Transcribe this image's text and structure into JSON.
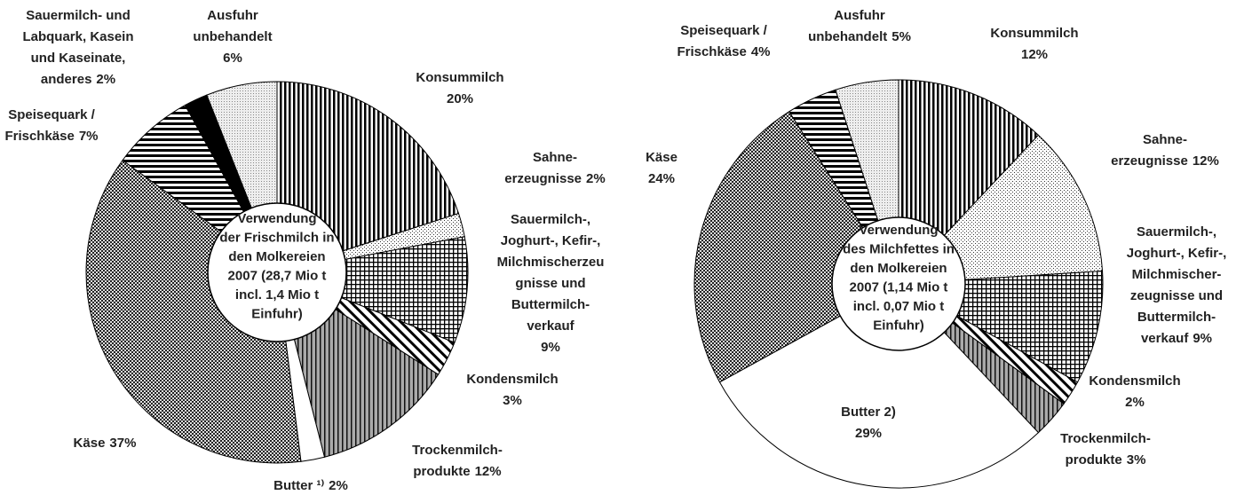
{
  "chart_data": [
    {
      "type": "pie",
      "title": [
        "Verwendung",
        "der Frischmilch in",
        "den Molkereien",
        "2007 (28,7 Mio t",
        "incl. 1,4 Mio t",
        "Einfuhr)"
      ],
      "categories": [
        [
          "Konsummilch"
        ],
        [
          "Sahne-",
          "erzeugnisse"
        ],
        [
          "Sauermilch-,",
          "Joghurt-, Kefir-,",
          "Milchmischerzeu",
          "gnisse und",
          "Buttermilch-",
          "verkauf"
        ],
        [
          "Kondensmilch"
        ],
        [
          "Trockenmilch-",
          "produkte"
        ],
        [
          "Butter ¹⁾"
        ],
        [
          "Käse"
        ],
        [
          "Speisequark /",
          "Frischkäse"
        ],
        [
          "Sauermilch- und",
          "Labquark, Kasein",
          "und Kaseinate,",
          "anderes"
        ],
        [
          "Ausfuhr",
          "unbehandelt"
        ]
      ],
      "values": [
        20,
        2,
        9,
        3,
        12,
        2,
        37,
        7,
        2,
        6
      ],
      "value_labels": [
        "20%",
        "2%",
        "9%",
        "3%",
        "12%",
        "2%",
        "37%",
        "7%",
        "2%",
        "6%"
      ],
      "patterns": [
        "vertical-lines",
        "dots",
        "crosshatch",
        "diagonal",
        "vertical-gray",
        "white",
        "checker",
        "horizontal-lines",
        "black",
        "fine-dots"
      ]
    },
    {
      "type": "pie",
      "title": [
        "Verwendung",
        "des Milchfettes in",
        "den Molkereien",
        "2007 (1,14 Mio t",
        "incl. 0,07 Mio t",
        "Einfuhr)"
      ],
      "categories": [
        [
          "Konsummilch"
        ],
        [
          "Sahne-",
          "erzeugnisse"
        ],
        [
          "Sauermilch-,",
          "Joghurt-, Kefir-,",
          "Milchmischer-",
          "zeugnisse und",
          "Buttermilch-",
          "verkauf"
        ],
        [
          "Kondensmilch"
        ],
        [
          "Trockenmilch-",
          "produkte"
        ],
        [
          "Butter 2)"
        ],
        [
          "Käse"
        ],
        [
          "Speisequark /",
          "Frischkäse"
        ],
        [
          "Ausfuhr",
          "unbehandelt"
        ]
      ],
      "values": [
        12,
        12,
        9,
        2,
        3,
        29,
        24,
        4,
        5
      ],
      "value_labels": [
        "12%",
        "12%",
        "9%",
        "2%",
        "3%",
        "29%",
        "24%",
        "4%",
        "5%"
      ],
      "patterns": [
        "vertical-lines",
        "dots",
        "crosshatch",
        "diagonal",
        "vertical-gray",
        "white",
        "checker",
        "horizontal-lines",
        "fine-dots"
      ]
    }
  ]
}
